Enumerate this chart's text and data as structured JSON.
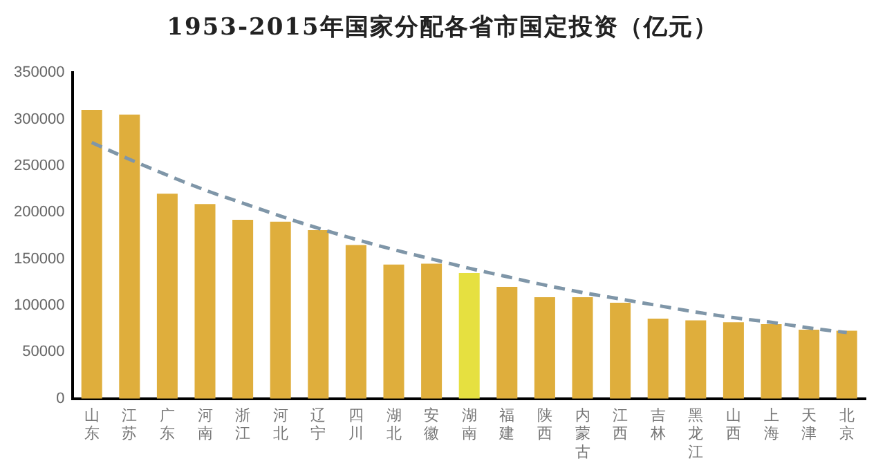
{
  "chart_data": {
    "type": "bar",
    "title": "1953-2015年国家分配各省市国定投资（亿元）",
    "categories": [
      "山东",
      "江苏",
      "广东",
      "河南",
      "浙江",
      "河北",
      "辽宁",
      "四川",
      "湖北",
      "安徽",
      "湖南",
      "福建",
      "陕西",
      "内蒙古",
      "江西",
      "吉林",
      "黑龙江",
      "山西",
      "上海",
      "天津",
      "北京"
    ],
    "series": [
      {
        "colors": [
          "#dfae3c",
          "#dfae3c",
          "#dfae3c",
          "#dfae3c",
          "#dfae3c",
          "#dfae3c",
          "#dfae3c",
          "#dfae3c",
          "#dfae3c",
          "#dfae3c",
          "#e6e040",
          "#dfae3c",
          "#dfae3c",
          "#dfae3c",
          "#dfae3c",
          "#dfae3c",
          "#dfae3c",
          "#dfae3c",
          "#dfae3c",
          "#dfae3c",
          "#dfae3c"
        ],
        "values": [
          310000,
          305000,
          220000,
          209000,
          192000,
          190000,
          181000,
          165000,
          144000,
          145000,
          135000,
          120000,
          109000,
          109000,
          103000,
          86000,
          84000,
          82000,
          80000,
          74000,
          73000
        ]
      },
      {
        "type": "line",
        "color": "#7f96a8",
        "line_style": "dashed",
        "marker": "none",
        "values": [
          275000,
          257000,
          240000,
          224000,
          210000,
          196000,
          183000,
          171000,
          160000,
          150000,
          140000,
          131000,
          122000,
          114000,
          107000,
          100000,
          93000,
          87000,
          82000,
          76000,
          71000
        ]
      }
    ],
    "ylim": [
      0,
      350000
    ],
    "yticks": [
      0,
      50000,
      100000,
      150000,
      200000,
      250000,
      300000,
      350000
    ],
    "grid": false,
    "legend": false
  }
}
